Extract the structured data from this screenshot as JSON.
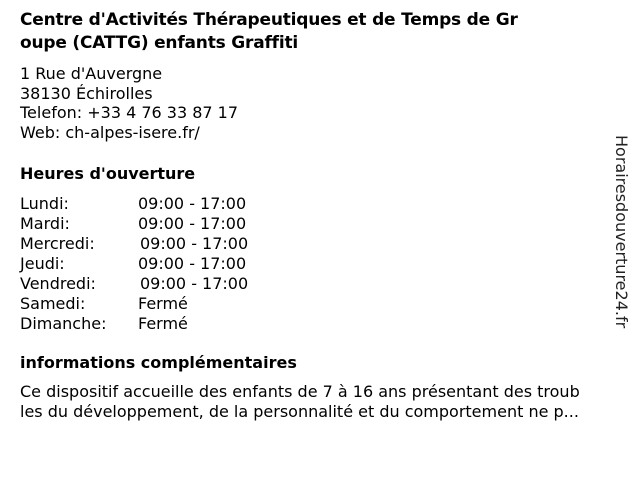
{
  "title": {
    "line1": "Centre d'Activités Thérapeutiques et de Temps de Gr",
    "line2": "oupe (CATTG) enfants Graffiti"
  },
  "address": {
    "street": "1 Rue d'Auvergne",
    "city": "38130 Échirolles",
    "phone": "Telefon: +33 4 76 33 87 17",
    "web": "Web: ch-alpes-isere.fr/"
  },
  "hours": {
    "heading": "Heures d'ouverture",
    "days": [
      {
        "day": "Lundi:",
        "time": "09:00 - 17:00"
      },
      {
        "day": "Mardi:",
        "time": "09:00 - 17:00"
      },
      {
        "day": "Mercredi:",
        "time": "09:00 - 17:00"
      },
      {
        "day": "Jeudi:",
        "time": "09:00 - 17:00"
      },
      {
        "day": "Vendredi:",
        "time": "09:00 - 17:00"
      },
      {
        "day": "Samedi:",
        "time": "Fermé"
      },
      {
        "day": "Dimanche:",
        "time": "Fermé"
      }
    ]
  },
  "info": {
    "heading": "informations complémentaires",
    "line1": "Ce dispositif accueille des enfants de 7 à 16 ans présentant des troub",
    "line2": "les du développement, de la personnalité et du comportement ne p..."
  },
  "watermark": "Horairesdouverture24.fr"
}
